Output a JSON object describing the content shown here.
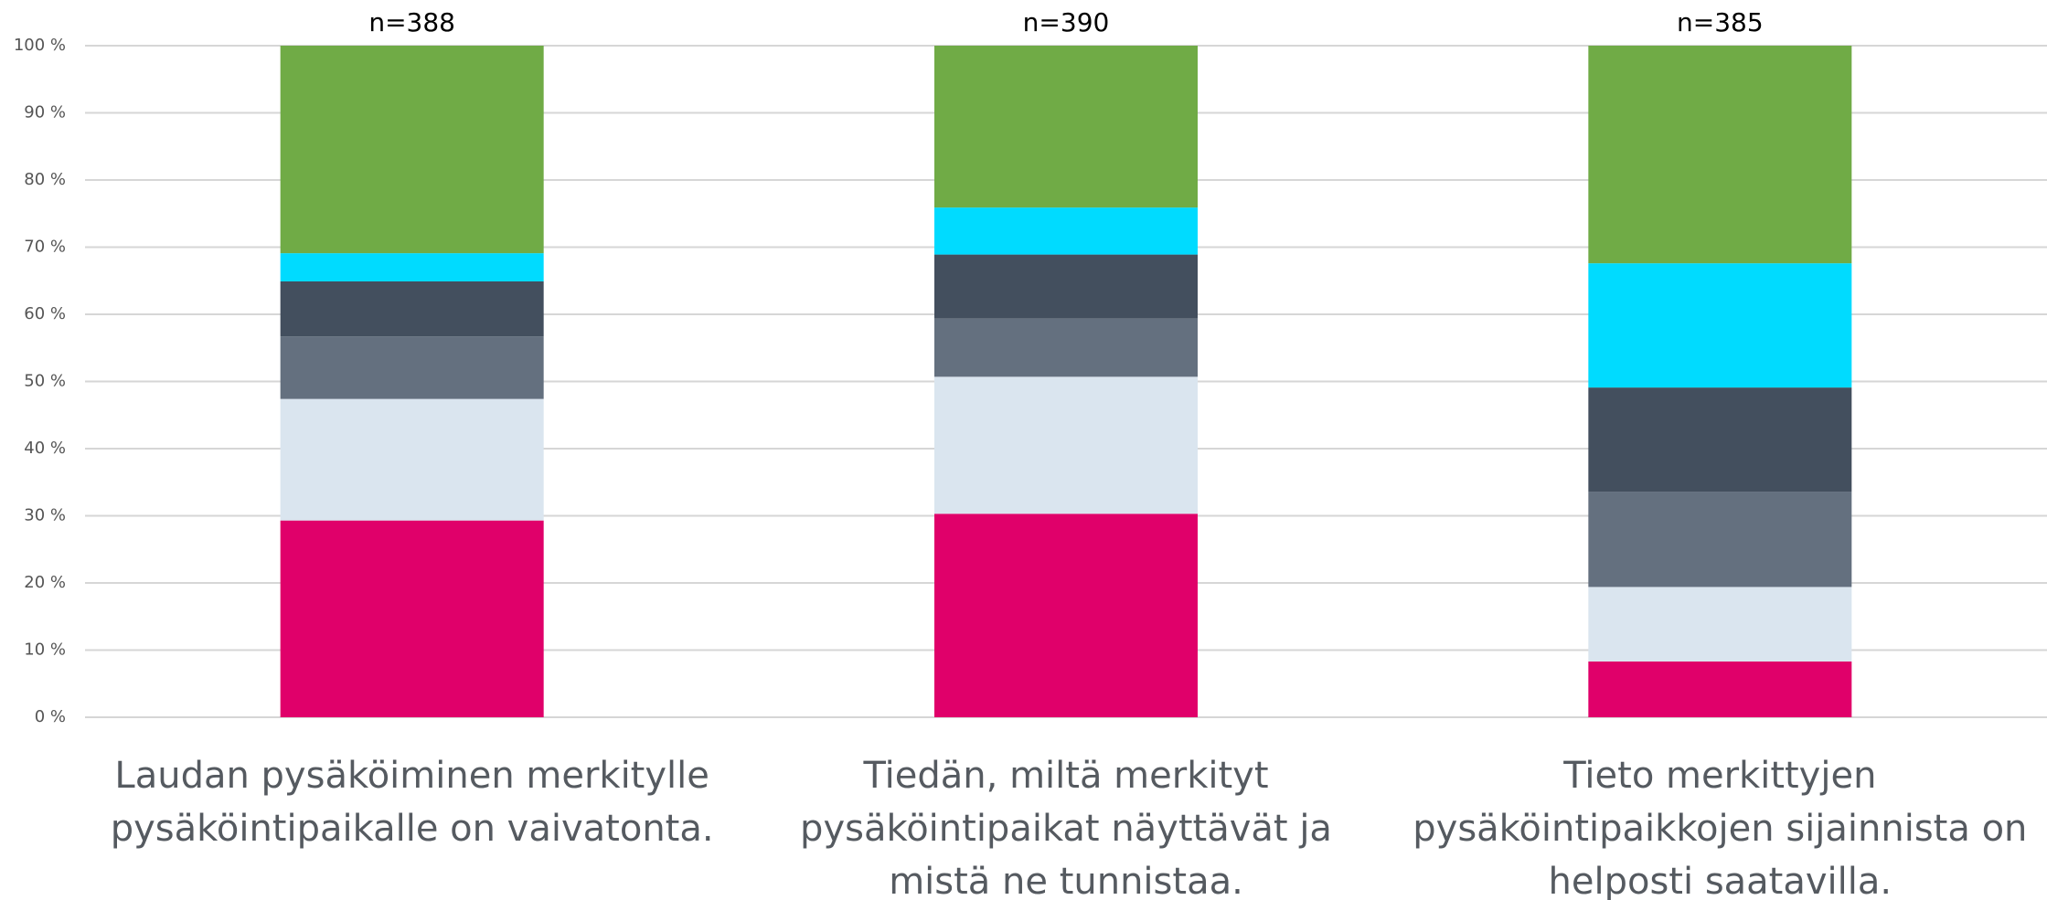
{
  "chart_data": {
    "type": "stacked_bar",
    "categories": [
      "Laudan pysäköiminen merkitylle pysäköintipaikalle on vaivatonta.",
      "Tiedän, miltä merkityt pysäköintipaikat näyttävät ja mistä ne tunnistaa.",
      "Tieto merkittyjen pysäköintipaikkojen sijainnista on helposti saatavilla."
    ],
    "annotations": [
      "n=388",
      "n=390",
      "n=385"
    ],
    "series": [
      {
        "color": "#e0006a",
        "values": [
          29.3,
          30.3,
          8.3
        ]
      },
      {
        "color": "#dae5ef",
        "values": [
          18.1,
          20.4,
          11.1
        ]
      },
      {
        "color": "#64707f",
        "values": [
          9.3,
          8.7,
          14.2
        ]
      },
      {
        "color": "#434f5e",
        "values": [
          8.2,
          9.5,
          15.5
        ]
      },
      {
        "color": "#00dbff",
        "values": [
          4.2,
          7.0,
          18.5
        ]
      },
      {
        "color": "#70ab46",
        "values": [
          30.9,
          24.1,
          32.4
        ]
      }
    ],
    "ylim": [
      0,
      100
    ],
    "yticks": [
      {
        "value": 0,
        "label": "0 %"
      },
      {
        "value": 10,
        "label": "10 %"
      },
      {
        "value": 20,
        "label": "20 %"
      },
      {
        "value": 30,
        "label": "30 %"
      },
      {
        "value": 40,
        "label": "40 %"
      },
      {
        "value": 50,
        "label": "50 %"
      },
      {
        "value": 60,
        "label": "60 %"
      },
      {
        "value": 70,
        "label": "70 %"
      },
      {
        "value": 80,
        "label": "80 %"
      },
      {
        "value": 90,
        "label": "90 %"
      },
      {
        "value": 100,
        "label": "100 %"
      }
    ],
    "grid": true
  }
}
